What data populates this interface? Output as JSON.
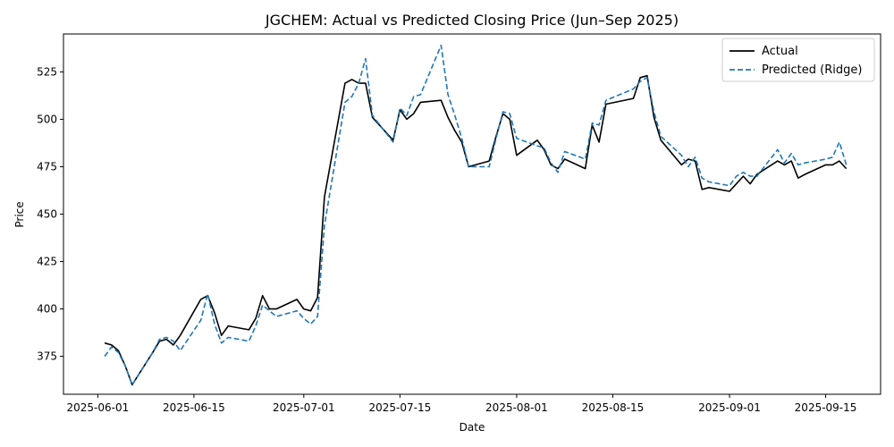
{
  "chart_data": {
    "type": "line",
    "title": "JGCHEM: Actual vs Predicted Closing Price (Jun–Sep 2025)",
    "xlabel": "Date",
    "ylabel": "Price",
    "xlim": [
      "2025-05-27",
      "2025-09-23"
    ],
    "ylim": [
      355,
      545
    ],
    "x_ticks": [
      "2025-06-01",
      "2025-06-15",
      "2025-07-01",
      "2025-07-15",
      "2025-08-01",
      "2025-08-15",
      "2025-09-01",
      "2025-09-15"
    ],
    "y_ticks": [
      375,
      400,
      425,
      450,
      475,
      500,
      525
    ],
    "grid": false,
    "legend_position": "top-right",
    "series": [
      {
        "name": "Actual",
        "color": "#000000",
        "style": "solid",
        "points": [
          [
            "2025-06-02",
            382
          ],
          [
            "2025-06-03",
            381
          ],
          [
            "2025-06-04",
            378
          ],
          [
            "2025-06-05",
            370
          ],
          [
            "2025-06-06",
            360
          ],
          [
            "2025-06-09",
            377
          ],
          [
            "2025-06-10",
            383
          ],
          [
            "2025-06-11",
            384
          ],
          [
            "2025-06-12",
            381
          ],
          [
            "2025-06-13",
            386
          ],
          [
            "2025-06-16",
            405
          ],
          [
            "2025-06-17",
            407
          ],
          [
            "2025-06-18",
            398
          ],
          [
            "2025-06-19",
            386
          ],
          [
            "2025-06-20",
            391
          ],
          [
            "2025-06-23",
            389
          ],
          [
            "2025-06-24",
            395
          ],
          [
            "2025-06-25",
            407
          ],
          [
            "2025-06-26",
            400
          ],
          [
            "2025-06-27",
            400
          ],
          [
            "2025-06-30",
            405
          ],
          [
            "2025-07-01",
            400
          ],
          [
            "2025-07-02",
            399
          ],
          [
            "2025-07-03",
            406
          ],
          [
            "2025-07-04",
            459
          ],
          [
            "2025-07-07",
            519
          ],
          [
            "2025-07-08",
            521
          ],
          [
            "2025-07-09",
            519
          ],
          [
            "2025-07-10",
            519
          ],
          [
            "2025-07-11",
            501
          ],
          [
            "2025-07-14",
            489
          ],
          [
            "2025-07-15",
            505
          ],
          [
            "2025-07-16",
            500
          ],
          [
            "2025-07-17",
            503
          ],
          [
            "2025-07-18",
            509
          ],
          [
            "2025-07-21",
            510
          ],
          [
            "2025-07-22",
            501
          ],
          [
            "2025-07-23",
            494
          ],
          [
            "2025-07-24",
            488
          ],
          [
            "2025-07-25",
            475
          ],
          [
            "2025-07-28",
            478
          ],
          [
            "2025-07-29",
            491
          ],
          [
            "2025-07-30",
            503
          ],
          [
            "2025-07-31",
            500
          ],
          [
            "2025-08-01",
            481
          ],
          [
            "2025-08-04",
            489
          ],
          [
            "2025-08-05",
            484
          ],
          [
            "2025-08-06",
            476
          ],
          [
            "2025-08-07",
            474
          ],
          [
            "2025-08-08",
            479
          ],
          [
            "2025-08-11",
            474
          ],
          [
            "2025-08-12",
            497
          ],
          [
            "2025-08-13",
            488
          ],
          [
            "2025-08-14",
            508
          ],
          [
            "2025-08-18",
            511
          ],
          [
            "2025-08-19",
            522
          ],
          [
            "2025-08-20",
            523
          ],
          [
            "2025-08-21",
            501
          ],
          [
            "2025-08-22",
            489
          ],
          [
            "2025-08-25",
            476
          ],
          [
            "2025-08-26",
            479
          ],
          [
            "2025-08-27",
            478
          ],
          [
            "2025-08-28",
            463
          ],
          [
            "2025-08-29",
            464
          ],
          [
            "2025-09-01",
            462
          ],
          [
            "2025-09-02",
            466
          ],
          [
            "2025-09-03",
            470
          ],
          [
            "2025-09-04",
            466
          ],
          [
            "2025-09-05",
            471
          ],
          [
            "2025-09-08",
            478
          ],
          [
            "2025-09-09",
            476
          ],
          [
            "2025-09-10",
            478
          ],
          [
            "2025-09-11",
            469
          ],
          [
            "2025-09-12",
            471
          ],
          [
            "2025-09-15",
            476
          ],
          [
            "2025-09-16",
            476
          ],
          [
            "2025-09-17",
            478
          ],
          [
            "2025-09-18",
            474
          ]
        ]
      },
      {
        "name": "Predicted (Ridge)",
        "color": "#1f77b4",
        "style": "dashed",
        "points": [
          [
            "2025-06-02",
            375
          ],
          [
            "2025-06-03",
            380
          ],
          [
            "2025-06-04",
            377
          ],
          [
            "2025-06-05",
            370
          ],
          [
            "2025-06-06",
            360
          ],
          [
            "2025-06-09",
            377
          ],
          [
            "2025-06-10",
            384
          ],
          [
            "2025-06-11",
            385
          ],
          [
            "2025-06-12",
            383
          ],
          [
            "2025-06-13",
            378
          ],
          [
            "2025-06-16",
            394
          ],
          [
            "2025-06-17",
            408
          ],
          [
            "2025-06-18",
            392
          ],
          [
            "2025-06-19",
            382
          ],
          [
            "2025-06-20",
            385
          ],
          [
            "2025-06-23",
            383
          ],
          [
            "2025-06-24",
            391
          ],
          [
            "2025-06-25",
            402
          ],
          [
            "2025-06-26",
            399
          ],
          [
            "2025-06-27",
            396
          ],
          [
            "2025-06-30",
            399
          ],
          [
            "2025-07-01",
            395
          ],
          [
            "2025-07-02",
            392
          ],
          [
            "2025-07-03",
            396
          ],
          [
            "2025-07-04",
            444
          ],
          [
            "2025-07-07",
            509
          ],
          [
            "2025-07-08",
            512
          ],
          [
            "2025-07-09",
            519
          ],
          [
            "2025-07-10",
            532
          ],
          [
            "2025-07-11",
            502
          ],
          [
            "2025-07-14",
            488
          ],
          [
            "2025-07-15",
            506
          ],
          [
            "2025-07-16",
            502
          ],
          [
            "2025-07-17",
            512
          ],
          [
            "2025-07-18",
            513
          ],
          [
            "2025-07-21",
            539
          ],
          [
            "2025-07-22",
            513
          ],
          [
            "2025-07-23",
            502
          ],
          [
            "2025-07-24",
            490
          ],
          [
            "2025-07-25",
            475
          ],
          [
            "2025-07-28",
            475
          ],
          [
            "2025-07-29",
            490
          ],
          [
            "2025-07-30",
            504
          ],
          [
            "2025-07-31",
            503
          ],
          [
            "2025-08-01",
            490
          ],
          [
            "2025-08-04",
            486
          ],
          [
            "2025-08-05",
            485
          ],
          [
            "2025-08-06",
            477
          ],
          [
            "2025-08-07",
            472
          ],
          [
            "2025-08-08",
            483
          ],
          [
            "2025-08-11",
            479
          ],
          [
            "2025-08-12",
            498
          ],
          [
            "2025-08-13",
            497
          ],
          [
            "2025-08-14",
            510
          ],
          [
            "2025-08-18",
            516
          ],
          [
            "2025-08-19",
            520
          ],
          [
            "2025-08-20",
            522
          ],
          [
            "2025-08-21",
            504
          ],
          [
            "2025-08-22",
            491
          ],
          [
            "2025-08-25",
            481
          ],
          [
            "2025-08-26",
            475
          ],
          [
            "2025-08-27",
            480
          ],
          [
            "2025-08-28",
            469
          ],
          [
            "2025-08-29",
            467
          ],
          [
            "2025-09-01",
            465
          ],
          [
            "2025-09-02",
            470
          ],
          [
            "2025-09-03",
            472
          ],
          [
            "2025-09-04",
            470
          ],
          [
            "2025-09-05",
            470
          ],
          [
            "2025-09-08",
            484
          ],
          [
            "2025-09-09",
            477
          ],
          [
            "2025-09-10",
            482
          ],
          [
            "2025-09-11",
            476
          ],
          [
            "2025-09-12",
            477
          ],
          [
            "2025-09-15",
            479
          ],
          [
            "2025-09-16",
            480
          ],
          [
            "2025-09-17",
            488
          ],
          [
            "2025-09-18",
            476
          ]
        ]
      }
    ]
  }
}
